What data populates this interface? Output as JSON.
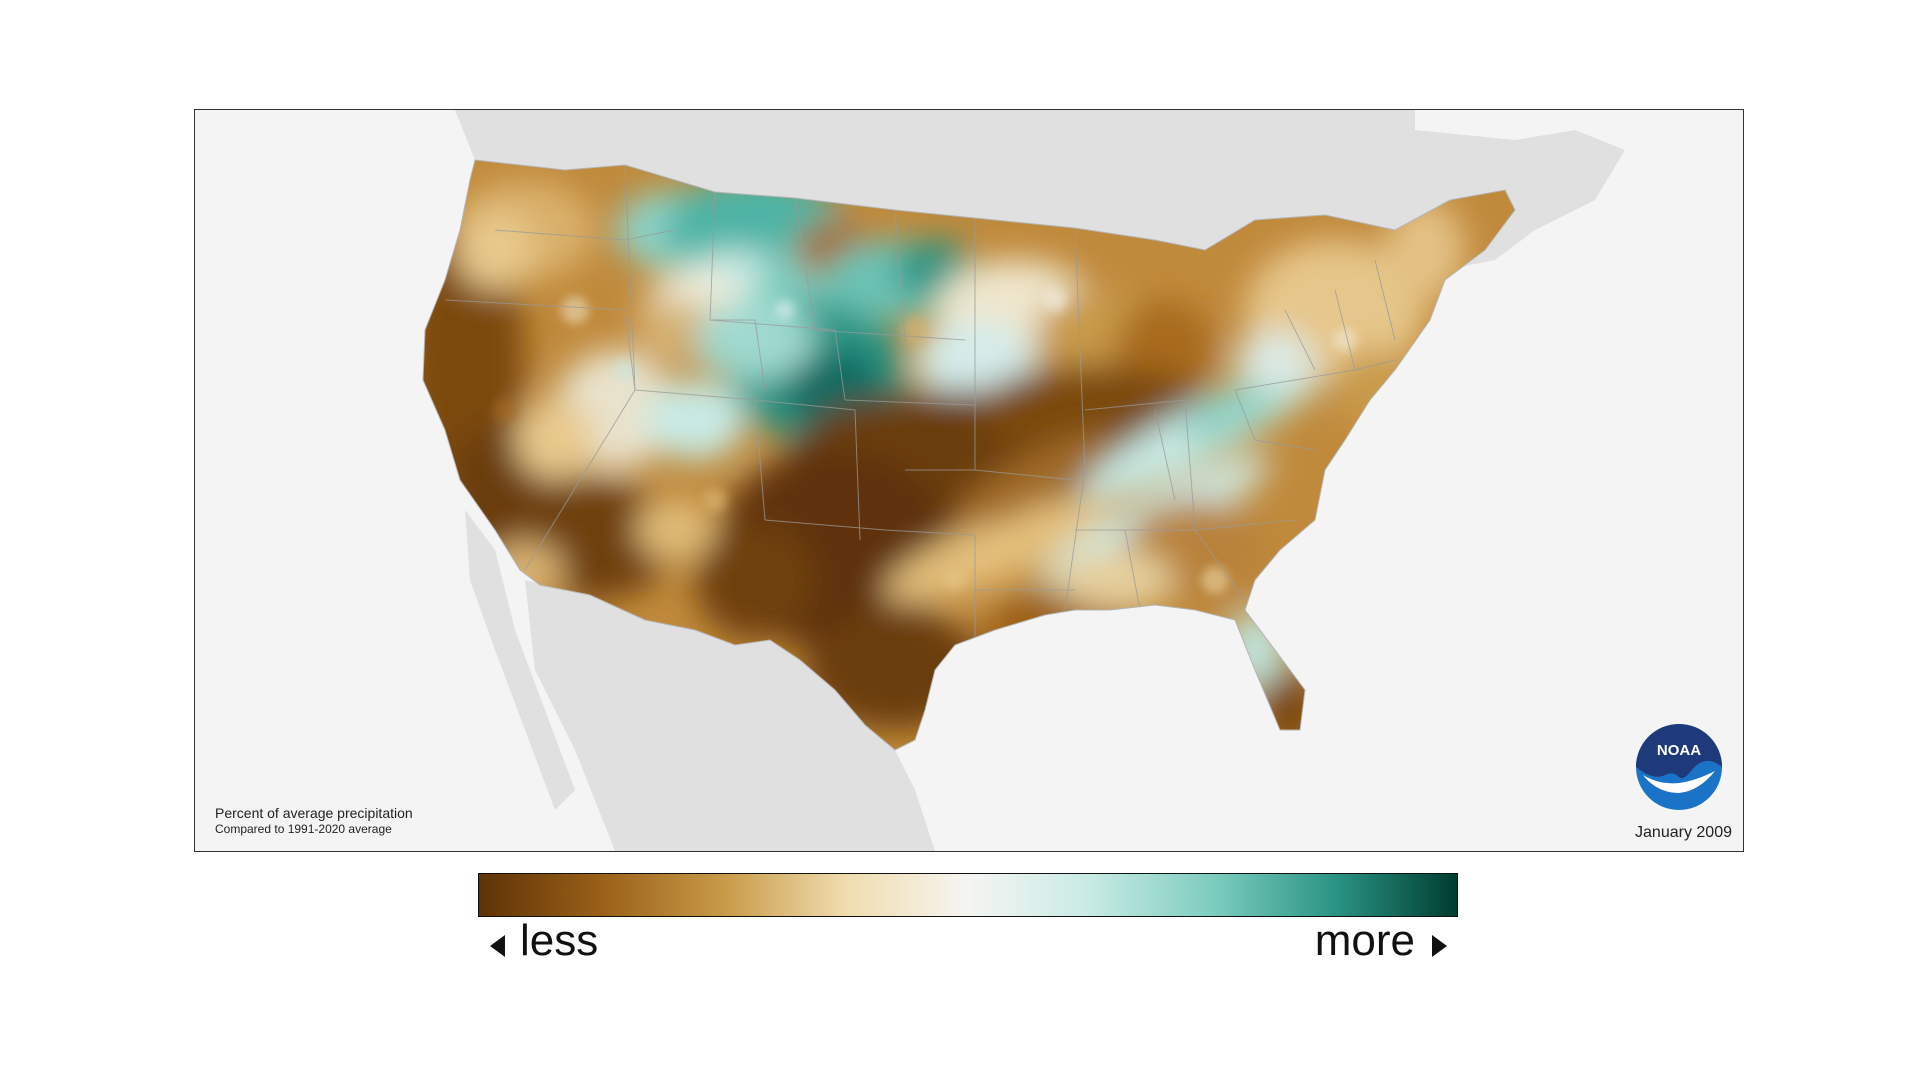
{
  "map": {
    "caption_main": "Percent of average precipitation",
    "caption_sub": "Compared to 1991-2020 average",
    "date": "January 2009",
    "logo_text": "NOAA",
    "logo_icon": "noaa-logo",
    "colors": {
      "ocean": "#f4f4f4",
      "land_outside": "#e0e0e0",
      "much_less": "#6b3d09",
      "less": "#a86b1e",
      "slightly_less": "#e8c98c",
      "near_normal": "#f4f1e8",
      "slightly_more": "#cdeae6",
      "more": "#5cbcae",
      "much_more": "#0e6b60",
      "border_lines": "#9a9a9a"
    }
  },
  "legend": {
    "less_label": "less",
    "more_label": "more",
    "gradient_stops": [
      "#5e3307",
      "#9a6018",
      "#c89a48",
      "#f0dcae",
      "#f5f5f2",
      "#c8eae4",
      "#7dcdbf",
      "#2a9484",
      "#003d30"
    ]
  }
}
